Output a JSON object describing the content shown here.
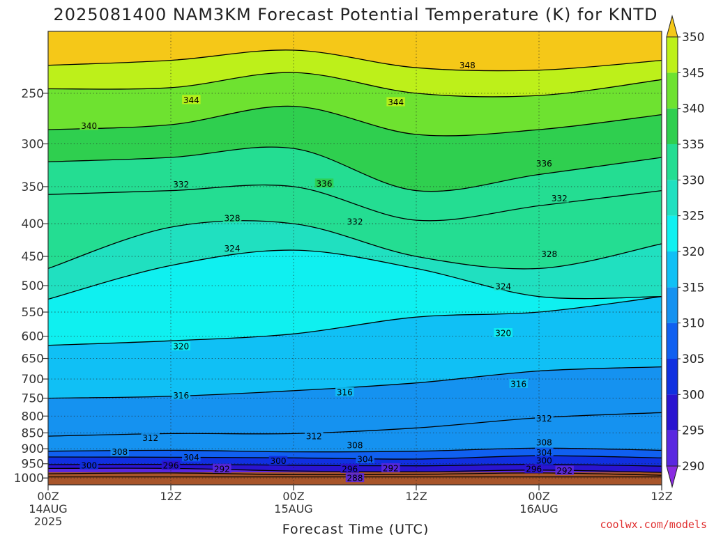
{
  "chart_data": {
    "type": "heatmap",
    "title": "2025081400 NAM3KM Forecast Potential Temperature (K) for KNTD",
    "xlabel": "Forecast Time (UTC)",
    "credit": "coolwx.com/models",
    "y_axis": {
      "scale": "log-pressure",
      "unit": "hPa",
      "range": [
        1025,
        200
      ],
      "ticks": [
        250,
        300,
        350,
        400,
        450,
        500,
        550,
        600,
        650,
        700,
        750,
        800,
        850,
        900,
        950,
        1000
      ],
      "grid": "dotted"
    },
    "x_axis": {
      "unit": "forecast hours",
      "range": [
        0,
        60
      ],
      "ticks": [
        {
          "hour": 0,
          "label": "00Z",
          "date": "14AUG",
          "year": "2025"
        },
        {
          "hour": 12,
          "label": "12Z",
          "date": "",
          "year": ""
        },
        {
          "hour": 24,
          "label": "00Z",
          "date": "15AUG",
          "year": ""
        },
        {
          "hour": 36,
          "label": "12Z",
          "date": "",
          "year": ""
        },
        {
          "hour": 48,
          "label": "00Z",
          "date": "16AUG",
          "year": ""
        },
        {
          "hour": 60,
          "label": "12Z",
          "date": "",
          "year": ""
        }
      ],
      "grid": "dotted"
    },
    "colorbar": {
      "levels": [
        290,
        295,
        300,
        305,
        310,
        315,
        320,
        325,
        330,
        335,
        340,
        345,
        350
      ],
      "colors": [
        "#8a2be2",
        "#5a28e0",
        "#2a14d0",
        "#1030e0",
        "#1060f0",
        "#1592f0",
        "#10c0f5",
        "#0ff0f0",
        "#20e0c0",
        "#24dd92",
        "#2fcf4f",
        "#6ee230",
        "#bdf01a",
        "#f5f514",
        "#f5c818"
      ],
      "below_color": "#8a2be2",
      "above_color": "#f5c818",
      "extend": "both"
    },
    "ground_color": "#a8552a",
    "isentropes": [
      {
        "level": 288,
        "pressure_hPa": [
          996,
          996,
          996,
          996,
          996,
          996
        ]
      },
      {
        "level": 292,
        "pressure_hPa": [
          985,
          982,
          988,
          987,
          982,
          990
        ]
      },
      {
        "level": 296,
        "pressure_hPa": [
          966,
          966,
          975,
          978,
          972,
          980
        ]
      },
      {
        "level": 300,
        "pressure_hPa": [
          953,
          952,
          955,
          957,
          952,
          958
        ]
      },
      {
        "level": 304,
        "pressure_hPa": [
          927,
          928,
          930,
          934,
          923,
          930
        ]
      },
      {
        "level": 308,
        "pressure_hPa": [
          908,
          905,
          910,
          908,
          898,
          905
        ]
      },
      {
        "level": 312,
        "pressure_hPa": [
          860,
          852,
          852,
          835,
          805,
          790
        ]
      },
      {
        "level": 316,
        "pressure_hPa": [
          750,
          745,
          730,
          710,
          680,
          670
        ]
      },
      {
        "level": 320,
        "pressure_hPa": [
          620,
          610,
          595,
          560,
          550,
          520
        ]
      },
      {
        "level": 324,
        "pressure_hPa": [
          525,
          465,
          440,
          470,
          520,
          520
        ]
      },
      {
        "level": 328,
        "pressure_hPa": [
          470,
          405,
          400,
          450,
          470,
          430
        ]
      },
      {
        "level": 332,
        "pressure_hPa": [
          360,
          355,
          350,
          395,
          375,
          355
        ]
      },
      {
        "level": 336,
        "pressure_hPa": [
          320,
          315,
          305,
          355,
          335,
          315
        ]
      },
      {
        "level": 340,
        "pressure_hPa": [
          285,
          280,
          262,
          290,
          285,
          270
        ]
      },
      {
        "level": 344,
        "pressure_hPa": [
          246,
          245,
          232,
          250,
          252,
          238
        ]
      },
      {
        "level": 348,
        "pressure_hPa": [
          226,
          222,
          214,
          228,
          230,
          222
        ]
      }
    ],
    "contour_labels": [
      {
        "value": "348",
        "hour": 41,
        "p": 226
      },
      {
        "value": "344",
        "hour": 14,
        "p": 256
      },
      {
        "value": "344",
        "hour": 34,
        "p": 258
      },
      {
        "value": "340",
        "hour": 4,
        "p": 281
      },
      {
        "value": "336",
        "hour": 48.5,
        "p": 322
      },
      {
        "value": "336",
        "hour": 27,
        "p": 346
      },
      {
        "value": "332",
        "hour": 13,
        "p": 347
      },
      {
        "value": "332",
        "hour": 50,
        "p": 365
      },
      {
        "value": "332",
        "hour": 30,
        "p": 397
      },
      {
        "value": "328",
        "hour": 18,
        "p": 392
      },
      {
        "value": "328",
        "hour": 49,
        "p": 446
      },
      {
        "value": "324",
        "hour": 18,
        "p": 437
      },
      {
        "value": "324",
        "hour": 44.5,
        "p": 501
      },
      {
        "value": "320",
        "hour": 44.5,
        "p": 593
      },
      {
        "value": "320",
        "hour": 13,
        "p": 622
      },
      {
        "value": "316",
        "hour": 46,
        "p": 712
      },
      {
        "value": "316",
        "hour": 13,
        "p": 742
      },
      {
        "value": "316",
        "hour": 29,
        "p": 734
      },
      {
        "value": "312",
        "hour": 48.5,
        "p": 807
      },
      {
        "value": "312",
        "hour": 10,
        "p": 865
      },
      {
        "value": "312",
        "hour": 26,
        "p": 860
      },
      {
        "value": "308",
        "hour": 30,
        "p": 888
      },
      {
        "value": "308",
        "hour": 7,
        "p": 910
      },
      {
        "value": "308",
        "hour": 48.5,
        "p": 880
      },
      {
        "value": "304",
        "hour": 31,
        "p": 934
      },
      {
        "value": "304",
        "hour": 14,
        "p": 928
      },
      {
        "value": "304",
        "hour": 48.5,
        "p": 912
      },
      {
        "value": "300",
        "hour": 4,
        "p": 955
      },
      {
        "value": "300",
        "hour": 22.5,
        "p": 940
      },
      {
        "value": "300",
        "hour": 48.5,
        "p": 939
      },
      {
        "value": "296",
        "hour": 12,
        "p": 956
      },
      {
        "value": "296",
        "hour": 29.5,
        "p": 967
      },
      {
        "value": "296",
        "hour": 47.5,
        "p": 968
      },
      {
        "value": "292",
        "hour": 17,
        "p": 967
      },
      {
        "value": "292",
        "hour": 33.5,
        "p": 965
      },
      {
        "value": "292",
        "hour": 50.5,
        "p": 974
      },
      {
        "value": "288",
        "hour": 30,
        "p": 1000
      }
    ]
  }
}
